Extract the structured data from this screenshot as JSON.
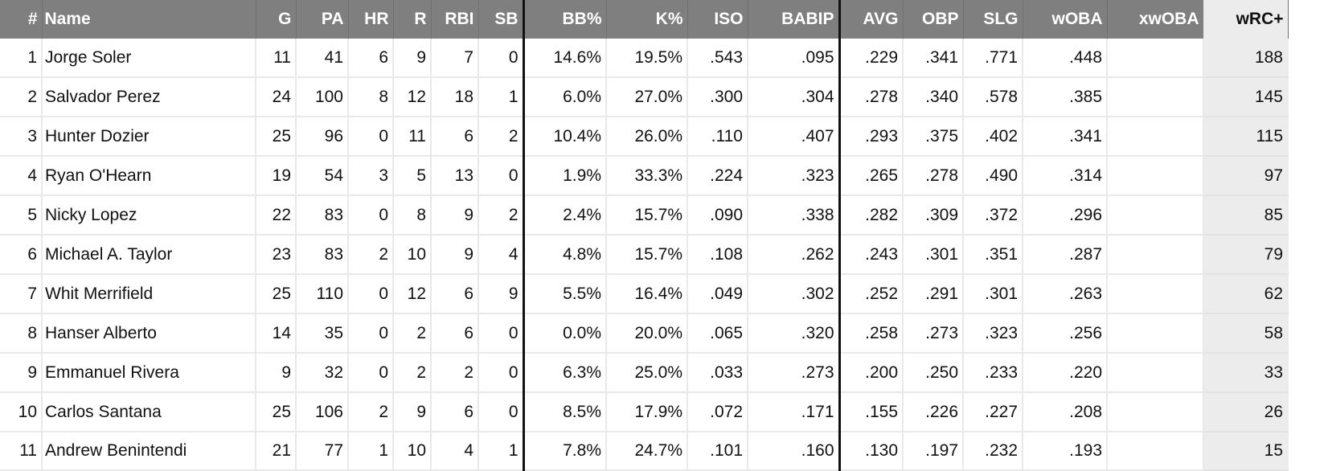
{
  "table": {
    "headers": {
      "rank": "#",
      "name": "Name",
      "g": "G",
      "pa": "PA",
      "hr": "HR",
      "r": "R",
      "rbi": "RBI",
      "sb": "SB",
      "bb_pct": "BB%",
      "k_pct": "K%",
      "iso": "ISO",
      "babip": "BABIP",
      "avg": "AVG",
      "obp": "OBP",
      "slg": "SLG",
      "woba": "wOBA",
      "xwoba": "xwOBA",
      "wrc_plus": "wRC+"
    },
    "rows": [
      {
        "rank": "1",
        "name": "Jorge Soler",
        "g": "11",
        "pa": "41",
        "hr": "6",
        "r": "9",
        "rbi": "7",
        "sb": "0",
        "bb_pct": "14.6%",
        "k_pct": "19.5%",
        "iso": ".543",
        "babip": ".095",
        "avg": ".229",
        "obp": ".341",
        "slg": ".771",
        "woba": ".448",
        "xwoba": "",
        "wrc_plus": "188"
      },
      {
        "rank": "2",
        "name": "Salvador Perez",
        "g": "24",
        "pa": "100",
        "hr": "8",
        "r": "12",
        "rbi": "18",
        "sb": "1",
        "bb_pct": "6.0%",
        "k_pct": "27.0%",
        "iso": ".300",
        "babip": ".304",
        "avg": ".278",
        "obp": ".340",
        "slg": ".578",
        "woba": ".385",
        "xwoba": "",
        "wrc_plus": "145"
      },
      {
        "rank": "3",
        "name": "Hunter Dozier",
        "g": "25",
        "pa": "96",
        "hr": "0",
        "r": "11",
        "rbi": "6",
        "sb": "2",
        "bb_pct": "10.4%",
        "k_pct": "26.0%",
        "iso": ".110",
        "babip": ".407",
        "avg": ".293",
        "obp": ".375",
        "slg": ".402",
        "woba": ".341",
        "xwoba": "",
        "wrc_plus": "115"
      },
      {
        "rank": "4",
        "name": "Ryan O'Hearn",
        "g": "19",
        "pa": "54",
        "hr": "3",
        "r": "5",
        "rbi": "13",
        "sb": "0",
        "bb_pct": "1.9%",
        "k_pct": "33.3%",
        "iso": ".224",
        "babip": ".323",
        "avg": ".265",
        "obp": ".278",
        "slg": ".490",
        "woba": ".314",
        "xwoba": "",
        "wrc_plus": "97"
      },
      {
        "rank": "5",
        "name": "Nicky Lopez",
        "g": "22",
        "pa": "83",
        "hr": "0",
        "r": "8",
        "rbi": "9",
        "sb": "2",
        "bb_pct": "2.4%",
        "k_pct": "15.7%",
        "iso": ".090",
        "babip": ".338",
        "avg": ".282",
        "obp": ".309",
        "slg": ".372",
        "woba": ".296",
        "xwoba": "",
        "wrc_plus": "85"
      },
      {
        "rank": "6",
        "name": "Michael A. Taylor",
        "g": "23",
        "pa": "83",
        "hr": "2",
        "r": "10",
        "rbi": "9",
        "sb": "4",
        "bb_pct": "4.8%",
        "k_pct": "15.7%",
        "iso": ".108",
        "babip": ".262",
        "avg": ".243",
        "obp": ".301",
        "slg": ".351",
        "woba": ".287",
        "xwoba": "",
        "wrc_plus": "79"
      },
      {
        "rank": "7",
        "name": "Whit Merrifield",
        "g": "25",
        "pa": "110",
        "hr": "0",
        "r": "12",
        "rbi": "6",
        "sb": "9",
        "bb_pct": "5.5%",
        "k_pct": "16.4%",
        "iso": ".049",
        "babip": ".302",
        "avg": ".252",
        "obp": ".291",
        "slg": ".301",
        "woba": ".263",
        "xwoba": "",
        "wrc_plus": "62"
      },
      {
        "rank": "8",
        "name": "Hanser Alberto",
        "g": "14",
        "pa": "35",
        "hr": "0",
        "r": "2",
        "rbi": "6",
        "sb": "0",
        "bb_pct": "0.0%",
        "k_pct": "20.0%",
        "iso": ".065",
        "babip": ".320",
        "avg": ".258",
        "obp": ".273",
        "slg": ".323",
        "woba": ".256",
        "xwoba": "",
        "wrc_plus": "58"
      },
      {
        "rank": "9",
        "name": "Emmanuel Rivera",
        "g": "9",
        "pa": "32",
        "hr": "0",
        "r": "2",
        "rbi": "2",
        "sb": "0",
        "bb_pct": "6.3%",
        "k_pct": "25.0%",
        "iso": ".033",
        "babip": ".273",
        "avg": ".200",
        "obp": ".250",
        "slg": ".233",
        "woba": ".220",
        "xwoba": "",
        "wrc_plus": "33"
      },
      {
        "rank": "10",
        "name": "Carlos Santana",
        "g": "25",
        "pa": "106",
        "hr": "2",
        "r": "9",
        "rbi": "6",
        "sb": "0",
        "bb_pct": "8.5%",
        "k_pct": "17.9%",
        "iso": ".072",
        "babip": ".171",
        "avg": ".155",
        "obp": ".226",
        "slg": ".227",
        "woba": ".208",
        "xwoba": "",
        "wrc_plus": "26"
      },
      {
        "rank": "11",
        "name": "Andrew Benintendi",
        "g": "21",
        "pa": "77",
        "hr": "1",
        "r": "10",
        "rbi": "4",
        "sb": "1",
        "bb_pct": "7.8%",
        "k_pct": "24.7%",
        "iso": ".101",
        "babip": ".160",
        "avg": ".130",
        "obp": ".197",
        "slg": ".232",
        "woba": ".193",
        "xwoba": "",
        "wrc_plus": "15"
      }
    ]
  },
  "colors": {
    "header_bg": "#7f7f7f",
    "header_text": "#ffffff",
    "sorted_column_bg": "#ececec",
    "section_divider": "#111111"
  }
}
